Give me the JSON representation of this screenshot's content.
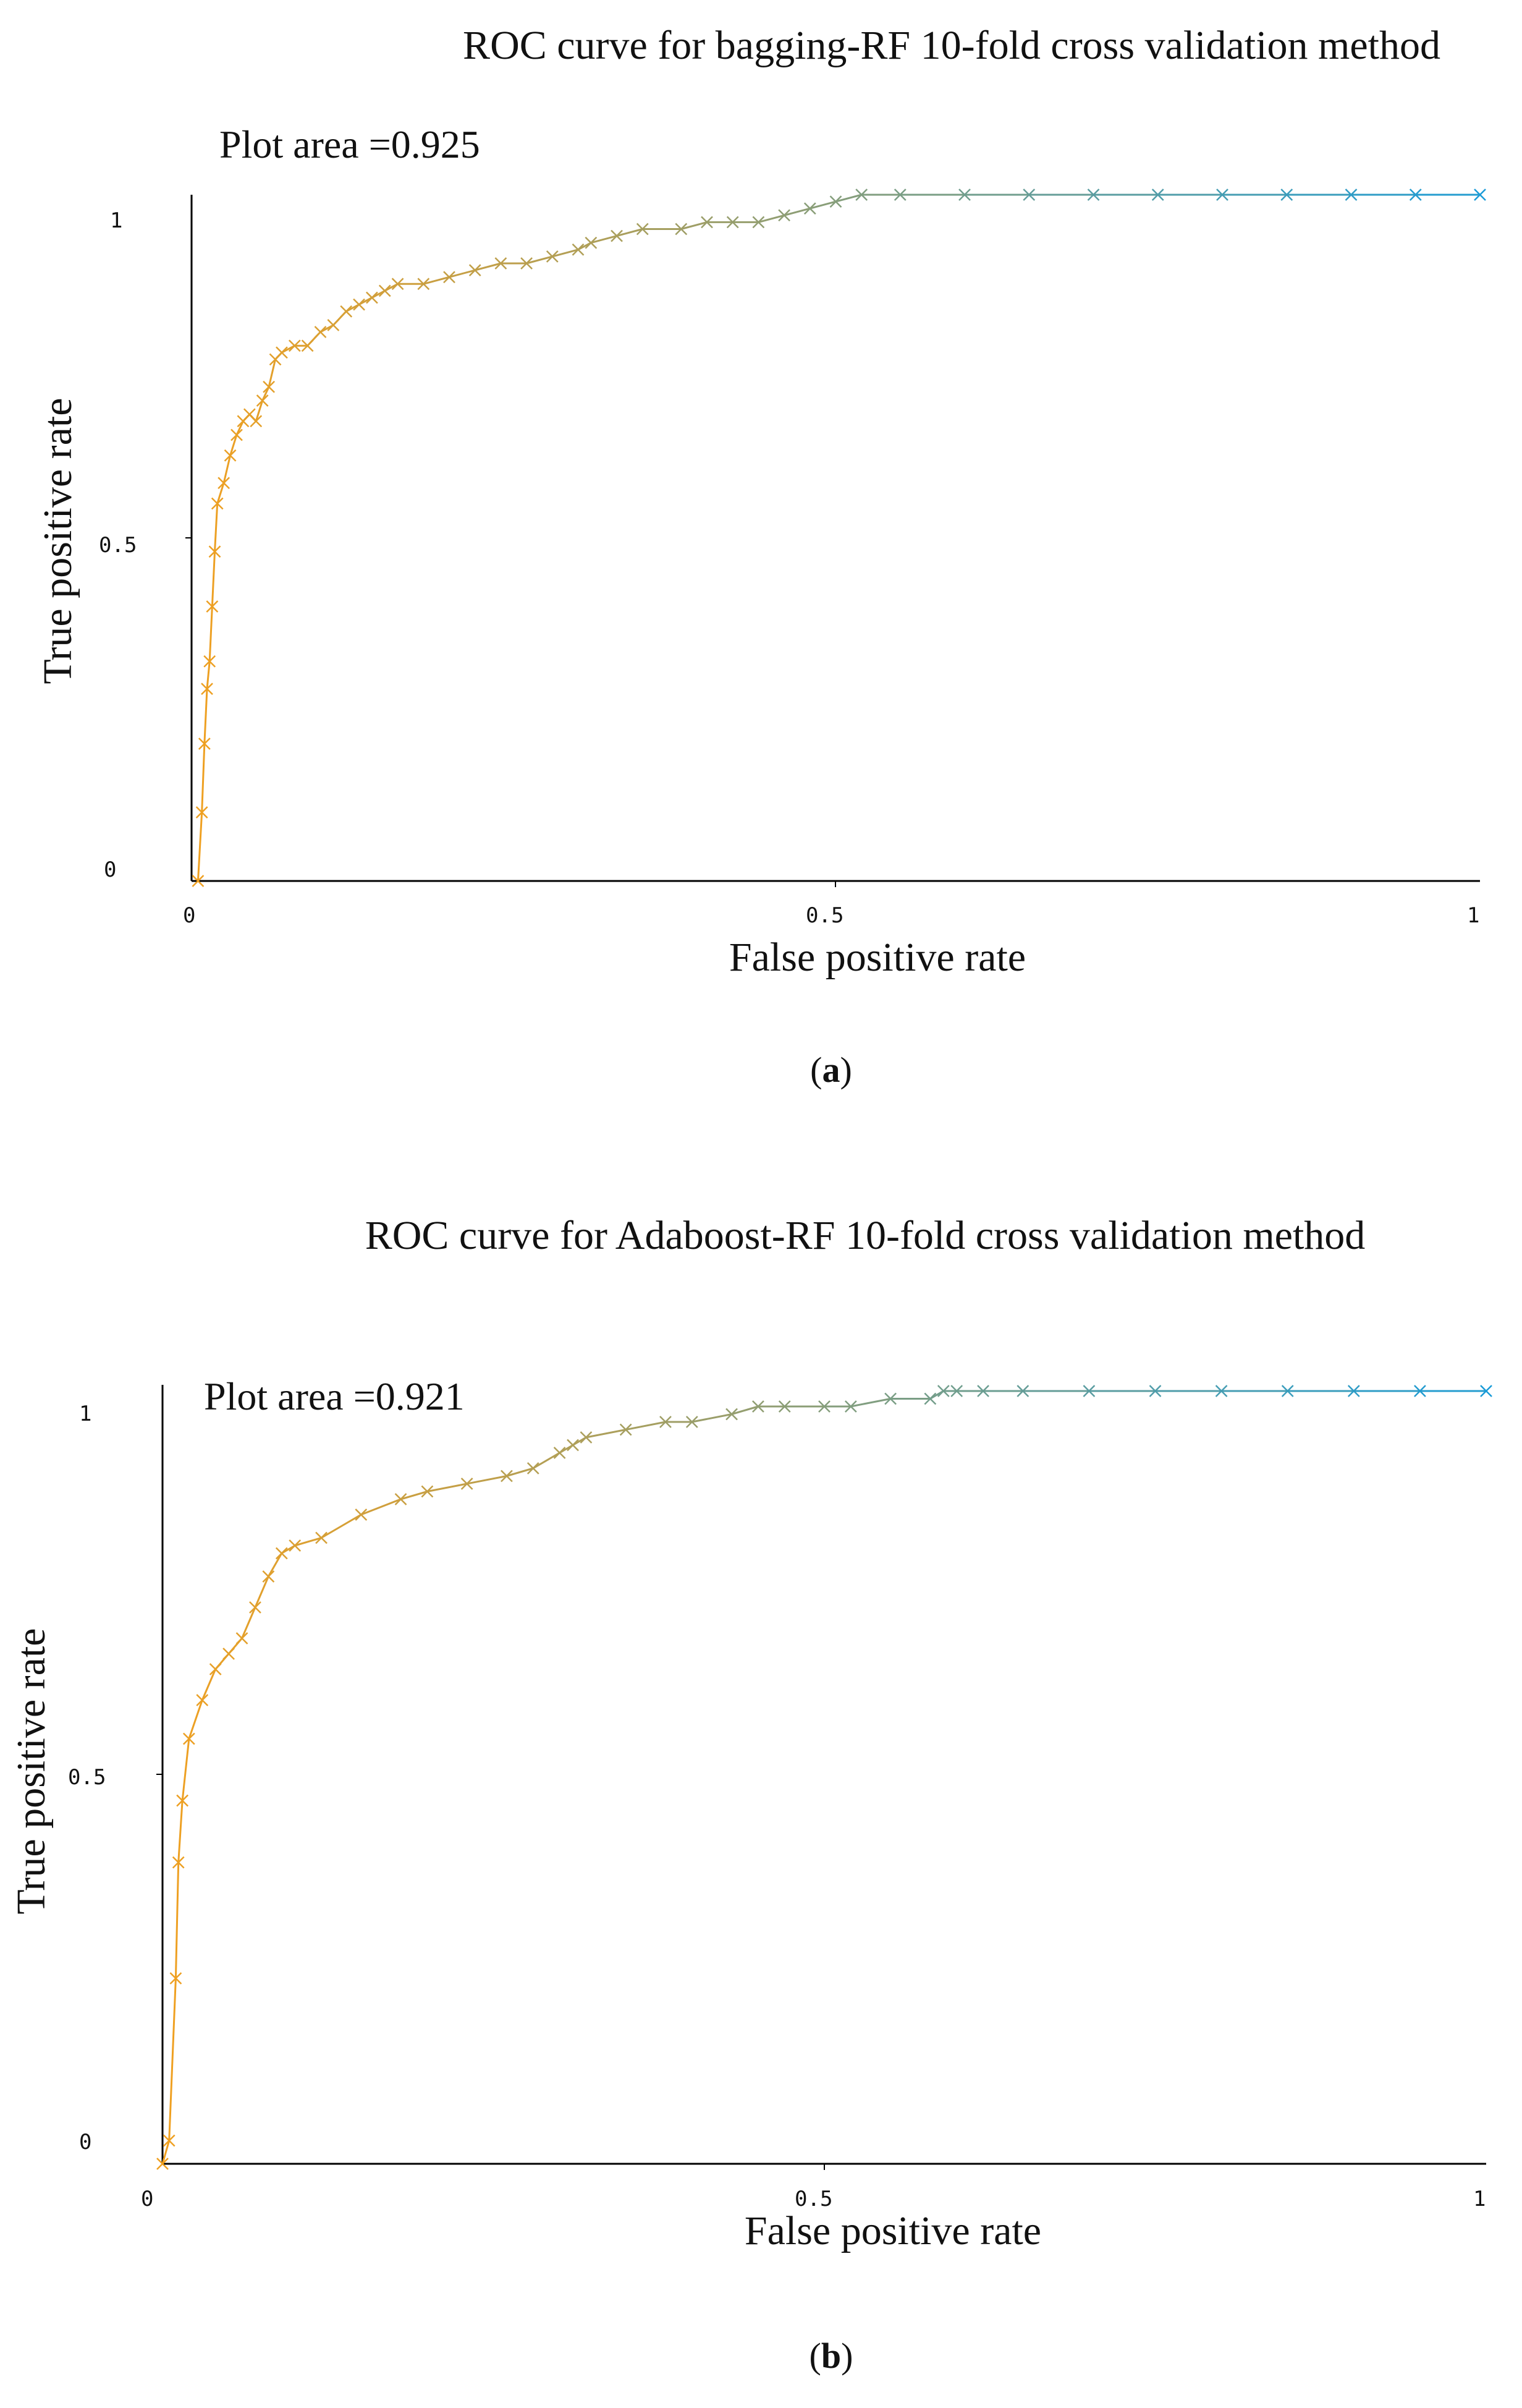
{
  "chart_data": [
    {
      "type": "line",
      "title": "ROC curve for bagging-RF 10-fold cross validation method",
      "annotation": "Plot area =0.925",
      "xlabel": "False positive rate",
      "ylabel": "True positive rate",
      "xlim": [
        0,
        1
      ],
      "ylim": [
        0,
        1
      ],
      "x_ticks": [
        "0",
        "0.5",
        "1"
      ],
      "y_ticks": [
        "0",
        "0.5",
        "1"
      ],
      "caption_open": "(",
      "caption_letter": "a",
      "caption_close": ")",
      "color_start": "#f0a020",
      "color_end": "#1a9cd8",
      "series": [
        {
          "name": "ROC",
          "marker": "x",
          "x": [
            0.005,
            0.008,
            0.01,
            0.012,
            0.014,
            0.016,
            0.018,
            0.02,
            0.025,
            0.03,
            0.035,
            0.04,
            0.045,
            0.05,
            0.055,
            0.06,
            0.065,
            0.07,
            0.08,
            0.09,
            0.1,
            0.11,
            0.12,
            0.13,
            0.14,
            0.15,
            0.16,
            0.18,
            0.2,
            0.22,
            0.24,
            0.26,
            0.28,
            0.3,
            0.31,
            0.33,
            0.35,
            0.38,
            0.4,
            0.42,
            0.44,
            0.46,
            0.48,
            0.5,
            0.52,
            0.55,
            0.6,
            0.65,
            0.7,
            0.75,
            0.8,
            0.85,
            0.9,
            0.95,
            1.0
          ],
          "y": [
            0.0,
            0.1,
            0.2,
            0.28,
            0.32,
            0.4,
            0.48,
            0.55,
            0.58,
            0.62,
            0.65,
            0.67,
            0.68,
            0.67,
            0.7,
            0.72,
            0.76,
            0.77,
            0.78,
            0.78,
            0.8,
            0.81,
            0.83,
            0.84,
            0.85,
            0.86,
            0.87,
            0.87,
            0.88,
            0.89,
            0.9,
            0.9,
            0.91,
            0.92,
            0.93,
            0.94,
            0.95,
            0.95,
            0.96,
            0.96,
            0.96,
            0.97,
            0.98,
            0.99,
            1.0,
            1.0,
            1.0,
            1.0,
            1.0,
            1.0,
            1.0,
            1.0,
            1.0,
            1.0,
            1.0
          ]
        }
      ]
    },
    {
      "type": "line",
      "title": "ROC curve for Adaboost-RF 10-fold cross validation method",
      "annotation": "Plot area =0.921",
      "xlabel": "False positive rate",
      "ylabel": "True positive rate",
      "xlim": [
        0,
        1
      ],
      "ylim": [
        0,
        1
      ],
      "x_ticks": [
        "0",
        "0.5",
        "1"
      ],
      "y_ticks": [
        "0",
        "0.5",
        "1"
      ],
      "caption_open": "(",
      "caption_letter": "b",
      "caption_close": ")",
      "color_start": "#f0a020",
      "color_end": "#1a9cd8",
      "series": [
        {
          "name": "ROC",
          "marker": "x",
          "x": [
            0.0,
            0.005,
            0.01,
            0.012,
            0.015,
            0.02,
            0.03,
            0.04,
            0.05,
            0.06,
            0.07,
            0.08,
            0.09,
            0.1,
            0.12,
            0.15,
            0.18,
            0.2,
            0.23,
            0.26,
            0.28,
            0.3,
            0.31,
            0.32,
            0.35,
            0.38,
            0.4,
            0.43,
            0.45,
            0.47,
            0.5,
            0.52,
            0.55,
            0.58,
            0.59,
            0.6,
            0.62,
            0.65,
            0.7,
            0.75,
            0.8,
            0.85,
            0.9,
            0.95,
            1.0
          ],
          "y": [
            0.0,
            0.03,
            0.24,
            0.39,
            0.47,
            0.55,
            0.6,
            0.64,
            0.66,
            0.68,
            0.72,
            0.76,
            0.79,
            0.8,
            0.81,
            0.84,
            0.86,
            0.87,
            0.88,
            0.89,
            0.9,
            0.92,
            0.93,
            0.94,
            0.95,
            0.96,
            0.96,
            0.97,
            0.98,
            0.98,
            0.98,
            0.98,
            0.99,
            0.99,
            1.0,
            1.0,
            1.0,
            1.0,
            1.0,
            1.0,
            1.0,
            1.0,
            1.0,
            1.0,
            1.0
          ]
        }
      ]
    }
  ]
}
